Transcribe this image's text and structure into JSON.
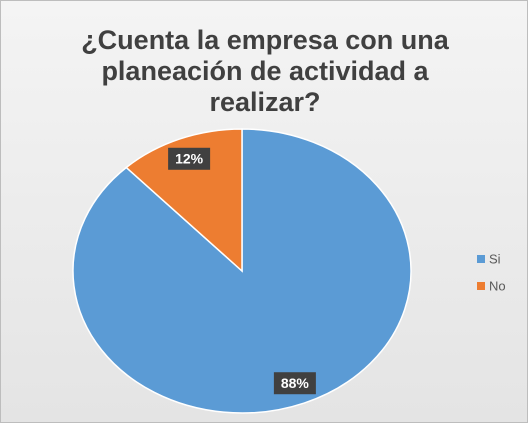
{
  "chart_data": {
    "type": "pie",
    "title": "¿Cuenta la empresa con una planeación de actividad a realizar?",
    "categories": [
      "Si",
      "No"
    ],
    "values": [
      88,
      12
    ],
    "value_labels": [
      "88%",
      "12%"
    ],
    "colors": [
      "#5b9bd5",
      "#ed7d31"
    ],
    "legend": "right"
  }
}
